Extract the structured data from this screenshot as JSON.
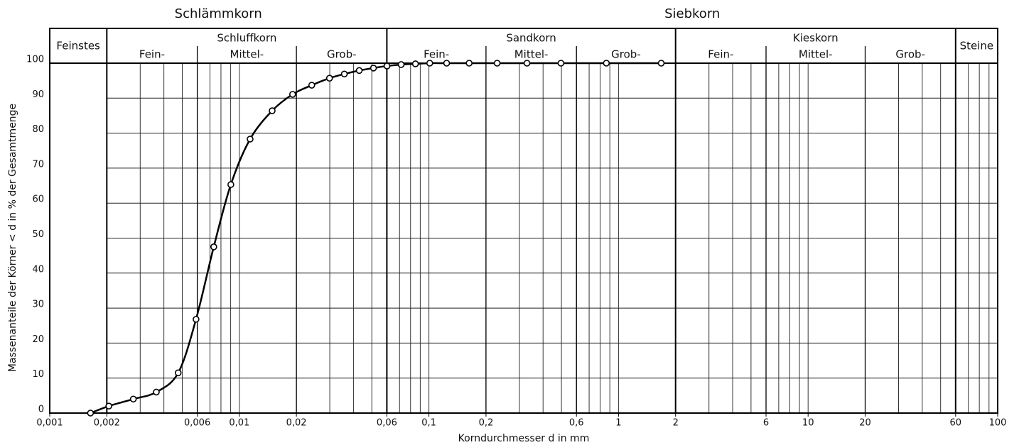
{
  "chart_data": {
    "type": "line",
    "xlabel": "Korndurchmesser d in mm",
    "ylabel": "Massenanteile der Körner < d in % der Gesamtmenge",
    "xscale": "log",
    "xlim": [
      0.001,
      100
    ],
    "ylim": [
      0,
      100
    ],
    "xticks": [
      {
        "value": 0.001,
        "label": "0,001"
      },
      {
        "value": 0.002,
        "label": "0,002"
      },
      {
        "value": 0.006,
        "label": "0,006"
      },
      {
        "value": 0.01,
        "label": "0,01"
      },
      {
        "value": 0.02,
        "label": "0,02"
      },
      {
        "value": 0.06,
        "label": "0,06"
      },
      {
        "value": 0.1,
        "label": "0,1"
      },
      {
        "value": 0.2,
        "label": "0,2"
      },
      {
        "value": 0.6,
        "label": "0,6"
      },
      1,
      2,
      6,
      10,
      20,
      60,
      100
    ],
    "yticks": [
      0,
      10,
      20,
      30,
      40,
      50,
      60,
      70,
      80,
      90,
      100
    ],
    "grid": true,
    "groups": [
      {
        "label": "Schlämmkorn",
        "range": [
          0.001,
          0.06
        ]
      },
      {
        "label": "Siebkorn",
        "range": [
          0.06,
          100
        ]
      }
    ],
    "fractions": [
      {
        "label": "Feinstes",
        "range": [
          0.001,
          0.002
        ]
      },
      {
        "label": "Schluffkorn",
        "range": [
          0.002,
          0.06
        ],
        "divisions": [
          0.006,
          0.02
        ],
        "sub": [
          "Fein-",
          "Mittel-",
          "Grob-"
        ]
      },
      {
        "label": "Sandkorn",
        "range": [
          0.06,
          2
        ],
        "divisions": [
          0.2,
          0.6
        ],
        "sub": [
          "Fein-",
          "Mittel-",
          "Grob-"
        ]
      },
      {
        "label": "Kieskorn",
        "range": [
          2,
          60
        ],
        "divisions": [
          6,
          20
        ],
        "sub": [
          "Fein-",
          "Mittel-",
          "Grob-"
        ]
      },
      {
        "label": "Steine",
        "range": [
          60,
          100
        ]
      }
    ],
    "x": [
      0.00164,
      0.00205,
      0.00276,
      0.00365,
      0.00476,
      0.00591,
      0.00733,
      0.00902,
      0.0114,
      0.0149,
      0.0191,
      0.0241,
      0.0299,
      0.0358,
      0.0429,
      0.051,
      0.0601,
      0.0714,
      0.0849,
      0.101,
      0.124,
      0.163,
      0.229,
      0.329,
      0.497,
      0.863,
      1.68
    ],
    "series": [
      {
        "color": "#000000",
        "values": [
          0,
          2,
          4,
          6,
          11.5,
          26.8,
          47.5,
          65.3,
          78.3,
          86.4,
          91.1,
          93.7,
          95.7,
          96.9,
          97.9,
          98.6,
          99.2,
          99.6,
          99.8,
          100,
          100,
          100,
          100,
          100,
          100,
          100,
          100
        ]
      }
    ]
  }
}
